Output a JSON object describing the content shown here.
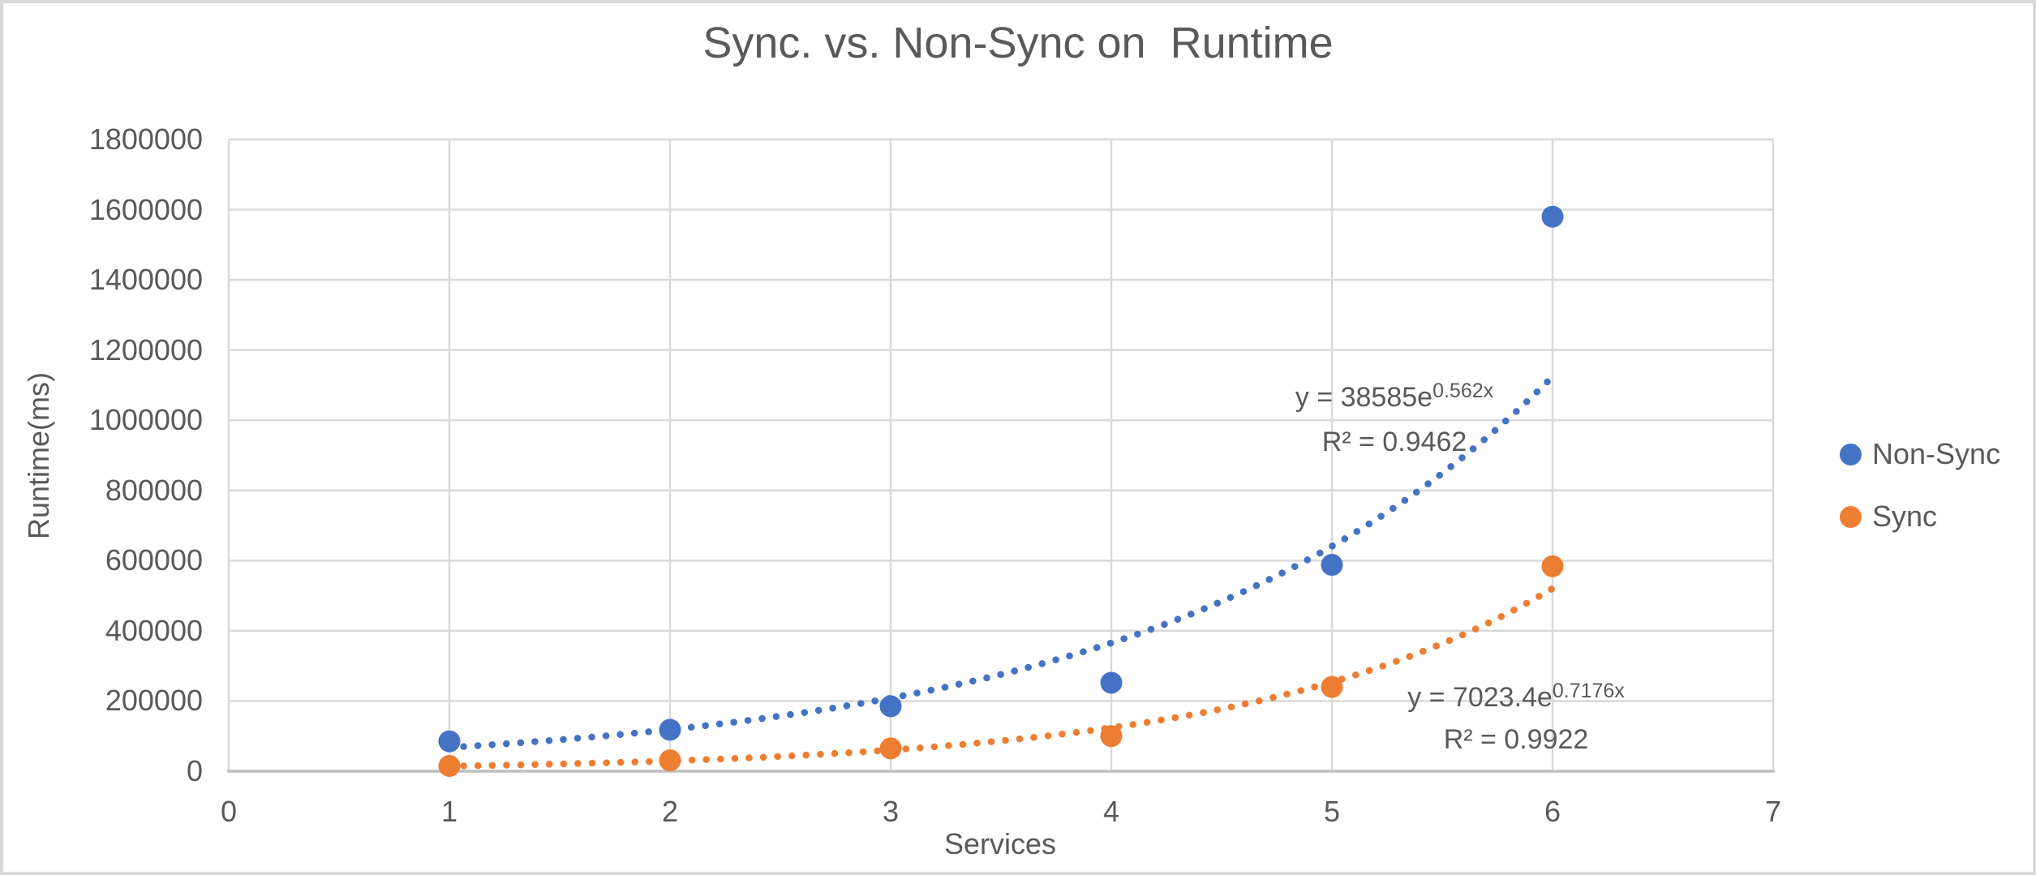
{
  "chart_data": {
    "type": "scatter",
    "title": "Sync. vs. Non-Sync on  Runtime",
    "xlabel": "Services",
    "ylabel": "Runtime(ms)",
    "xlim": [
      0,
      7
    ],
    "ylim": [
      0,
      1800000
    ],
    "x_ticks": [
      0,
      1,
      2,
      3,
      4,
      5,
      6,
      7
    ],
    "y_ticks": [
      0,
      200000,
      400000,
      600000,
      800000,
      1000000,
      1200000,
      1400000,
      1600000,
      1800000
    ],
    "grid": true,
    "legend_position": "right",
    "series": [
      {
        "name": "Non-Sync",
        "color": "#4472C4",
        "x": [
          1,
          2,
          3,
          4,
          5,
          6
        ],
        "y": [
          85000,
          118000,
          185000,
          252000,
          588000,
          1580000
        ],
        "trendline": {
          "type": "exponential",
          "a": 38585,
          "b": 0.562,
          "equation_base": "y = 38585e",
          "equation_exponent": "0.562x",
          "r2_label": "R² = 0.9462"
        }
      },
      {
        "name": "Sync",
        "color": "#ED7D31",
        "x": [
          1,
          2,
          3,
          4,
          5,
          6
        ],
        "y": [
          15000,
          31000,
          65000,
          100000,
          240000,
          584000
        ],
        "trendline": {
          "type": "exponential",
          "a": 7023.4,
          "b": 0.7176,
          "equation_base": "y = 7023.4e",
          "equation_exponent": "0.7176x",
          "r2_label": "R² = 0.9922"
        }
      }
    ]
  },
  "colors": {
    "background": "#FFFFFF",
    "border": "#D9D9D9",
    "gridline": "#D9D9D9",
    "axis_line": "#BFBFBF",
    "text": "#595959",
    "non_sync": "#4472C4",
    "sync": "#ED7D31"
  }
}
